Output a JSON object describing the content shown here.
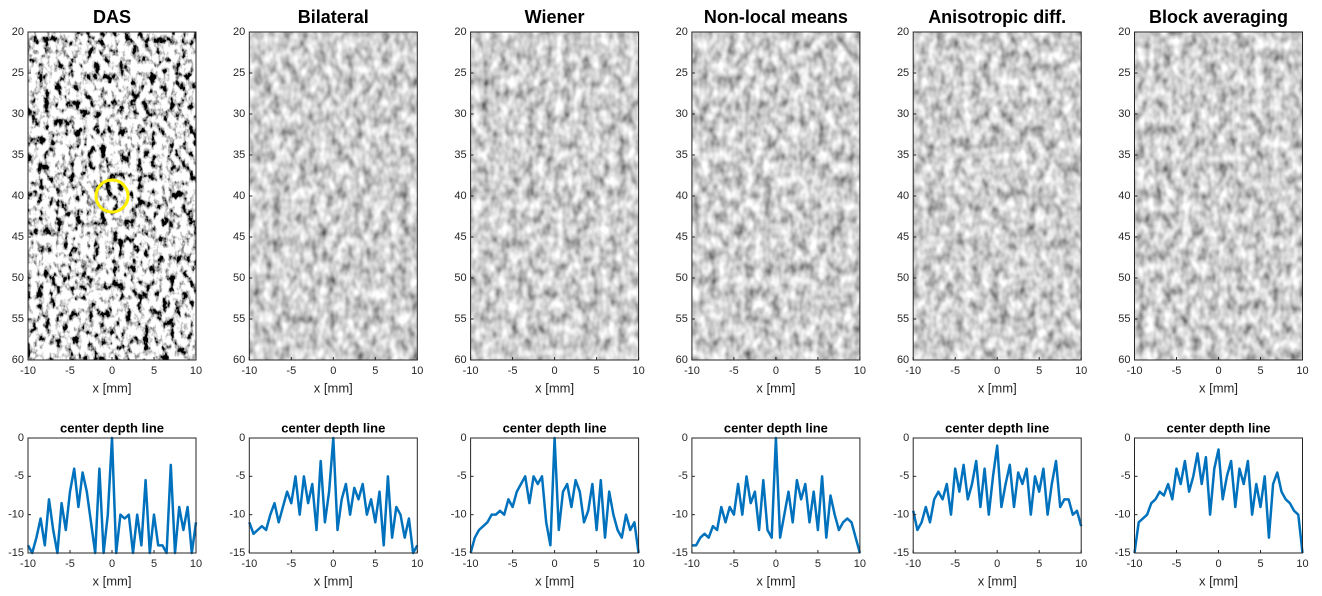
{
  "chart_data": [
    {
      "type": "image",
      "title": "DAS",
      "xlabel": "x [mm]",
      "xlim": [
        -10,
        10
      ],
      "xticks": [
        -10,
        -5,
        0,
        5,
        10
      ],
      "ylim": [
        20,
        60
      ],
      "yticks": [
        20,
        25,
        30,
        35,
        40,
        45,
        50,
        55,
        60
      ]
    },
    {
      "type": "image",
      "title": "Bilateral",
      "xlabel": "x [mm]",
      "xlim": [
        -10,
        10
      ],
      "xticks": [
        -10,
        -5,
        0,
        5,
        10
      ],
      "ylim": [
        20,
        60
      ],
      "yticks": [
        20,
        25,
        30,
        35,
        40,
        45,
        50,
        55,
        60
      ]
    },
    {
      "type": "image",
      "title": "Wiener",
      "xlabel": "x [mm]",
      "xlim": [
        -10,
        10
      ],
      "xticks": [
        -10,
        -5,
        0,
        5,
        10
      ],
      "ylim": [
        20,
        60
      ],
      "yticks": [
        20,
        25,
        30,
        35,
        40,
        45,
        50,
        55,
        60
      ]
    },
    {
      "type": "image",
      "title": "Non-local means",
      "xlabel": "x [mm]",
      "xlim": [
        -10,
        10
      ],
      "xticks": [
        -10,
        -5,
        0,
        5,
        10
      ],
      "ylim": [
        20,
        60
      ],
      "yticks": [
        20,
        25,
        30,
        35,
        40,
        45,
        50,
        55,
        60
      ]
    },
    {
      "type": "image",
      "title": "Anisotropic diff.",
      "xlabel": "x [mm]",
      "xlim": [
        -10,
        10
      ],
      "xticks": [
        -10,
        -5,
        0,
        5,
        10
      ],
      "ylim": [
        20,
        60
      ],
      "yticks": [
        20,
        25,
        30,
        35,
        40,
        45,
        50,
        55,
        60
      ]
    },
    {
      "type": "image",
      "title": "Block averaging",
      "xlabel": "x [mm]",
      "xlim": [
        -10,
        10
      ],
      "xticks": [
        -10,
        -5,
        0,
        5,
        10
      ],
      "ylim": [
        20,
        60
      ],
      "yticks": [
        20,
        25,
        30,
        35,
        40,
        45,
        50,
        55,
        60
      ]
    },
    {
      "type": "line",
      "title": "center depth line",
      "xlabel": "x [mm]",
      "xlim": [
        -10,
        10
      ],
      "xticks": [
        -10,
        -5,
        0,
        5,
        10
      ],
      "ylim": [
        -15,
        0
      ],
      "yticks": [
        -15,
        -10,
        -5,
        0
      ],
      "x": [
        -10,
        -9.5,
        -9,
        -8.5,
        -8,
        -7.5,
        -7,
        -6.5,
        -6,
        -5.5,
        -5,
        -4.5,
        -4,
        -3.5,
        -3,
        -2.5,
        -2,
        -1.5,
        -1,
        -0.5,
        0,
        0.5,
        1,
        1.5,
        2,
        2.5,
        3,
        3.5,
        4,
        4.5,
        5,
        5.5,
        6,
        6.5,
        7,
        7.5,
        8,
        8.5,
        9,
        9.5,
        10
      ],
      "series": [
        {
          "color": "#0072bd",
          "values": [
            -14,
            -15,
            -13,
            -10.5,
            -14,
            -8,
            -12,
            -15,
            -8.5,
            -12,
            -7,
            -4,
            -9,
            -4.5,
            -7,
            -11,
            -15,
            -4,
            -15,
            -10,
            0,
            -15,
            -10,
            -10.5,
            -10,
            -15,
            -10,
            -14,
            -5.5,
            -15,
            -10,
            -14,
            -14,
            -15,
            -3.5,
            -15,
            -9,
            -12,
            -9,
            -15,
            -11
          ]
        }
      ]
    },
    {
      "type": "line",
      "title": "center depth line",
      "xlabel": "x [mm]",
      "xlim": [
        -10,
        10
      ],
      "xticks": [
        -10,
        -5,
        0,
        5,
        10
      ],
      "ylim": [
        -15,
        0
      ],
      "yticks": [
        -15,
        -10,
        -5,
        0
      ],
      "x": [
        -10,
        -9.5,
        -9,
        -8.5,
        -8,
        -7.5,
        -7,
        -6.5,
        -6,
        -5.5,
        -5,
        -4.5,
        -4,
        -3.5,
        -3,
        -2.5,
        -2,
        -1.5,
        -1,
        -0.5,
        0,
        0.5,
        1,
        1.5,
        2,
        2.5,
        3,
        3.5,
        4,
        4.5,
        5,
        5.5,
        6,
        6.5,
        7,
        7.5,
        8,
        8.5,
        9,
        9.5,
        10
      ],
      "series": [
        {
          "color": "#0072bd",
          "values": [
            -11,
            -12.5,
            -12,
            -11.5,
            -12,
            -10,
            -8.5,
            -11,
            -9,
            -7,
            -8.5,
            -5,
            -10,
            -5,
            -8.5,
            -6,
            -12,
            -3,
            -11,
            -7,
            0,
            -12,
            -8,
            -6,
            -10,
            -6.5,
            -8,
            -6,
            -10,
            -8,
            -11,
            -7,
            -14,
            -5,
            -13,
            -9,
            -10,
            -13,
            -10.5,
            -15,
            -14
          ]
        }
      ]
    },
    {
      "type": "line",
      "title": "center depth line",
      "xlabel": "x [mm]",
      "xlim": [
        -10,
        10
      ],
      "xticks": [
        -10,
        -5,
        0,
        5,
        10
      ],
      "ylim": [
        -15,
        0
      ],
      "yticks": [
        -15,
        -10,
        -5,
        0
      ],
      "x": [
        -10,
        -9.5,
        -9,
        -8.5,
        -8,
        -7.5,
        -7,
        -6.5,
        -6,
        -5.5,
        -5,
        -4.5,
        -4,
        -3.5,
        -3,
        -2.5,
        -2,
        -1.5,
        -1,
        -0.5,
        0,
        0.5,
        1,
        1.5,
        2,
        2.5,
        3,
        3.5,
        4,
        4.5,
        5,
        5.5,
        6,
        6.5,
        7,
        7.5,
        8,
        8.5,
        9,
        9.5,
        10
      ],
      "series": [
        {
          "color": "#0072bd",
          "values": [
            -15,
            -13,
            -12,
            -11.5,
            -11,
            -10,
            -10,
            -9.5,
            -10,
            -8,
            -9,
            -7,
            -6,
            -5,
            -8.5,
            -5,
            -6,
            -5,
            -11,
            -14,
            0,
            -12,
            -7,
            -6,
            -9,
            -5.5,
            -7,
            -11,
            -9.5,
            -6,
            -12,
            -5.5,
            -13,
            -7,
            -10,
            -12,
            -13,
            -10,
            -12,
            -11,
            -15
          ]
        }
      ]
    },
    {
      "type": "line",
      "title": "center depth line",
      "xlabel": "x [mm]",
      "xlim": [
        -10,
        10
      ],
      "xticks": [
        -10,
        -5,
        0,
        5,
        10
      ],
      "ylim": [
        -15,
        0
      ],
      "yticks": [
        -15,
        -10,
        -5,
        0
      ],
      "x": [
        -10,
        -9.5,
        -9,
        -8.5,
        -8,
        -7.5,
        -7,
        -6.5,
        -6,
        -5.5,
        -5,
        -4.5,
        -4,
        -3.5,
        -3,
        -2.5,
        -2,
        -1.5,
        -1,
        -0.5,
        0,
        0.5,
        1,
        1.5,
        2,
        2.5,
        3,
        3.5,
        4,
        4.5,
        5,
        5.5,
        6,
        6.5,
        7,
        7.5,
        8,
        8.5,
        9,
        9.5,
        10
      ],
      "series": [
        {
          "color": "#0072bd",
          "values": [
            -14,
            -14,
            -13,
            -12.5,
            -13,
            -11.5,
            -12,
            -9,
            -11,
            -9,
            -10,
            -6,
            -10,
            -5,
            -8.5,
            -7,
            -12,
            -5.5,
            -12,
            -13,
            0,
            -13,
            -10,
            -7,
            -11,
            -5.5,
            -8,
            -6,
            -11,
            -7,
            -12,
            -5,
            -13,
            -7.5,
            -10,
            -12,
            -11,
            -10.5,
            -11,
            -13,
            -15
          ]
        }
      ]
    },
    {
      "type": "line",
      "title": "center depth line",
      "xlabel": "x [mm]",
      "xlim": [
        -10,
        10
      ],
      "xticks": [
        -10,
        -5,
        0,
        5,
        10
      ],
      "ylim": [
        -15,
        0
      ],
      "yticks": [
        -15,
        -10,
        -5,
        0
      ],
      "x": [
        -10,
        -9.5,
        -9,
        -8.5,
        -8,
        -7.5,
        -7,
        -6.5,
        -6,
        -5.5,
        -5,
        -4.5,
        -4,
        -3.5,
        -3,
        -2.5,
        -2,
        -1.5,
        -1,
        -0.5,
        0,
        0.5,
        1,
        1.5,
        2,
        2.5,
        3,
        3.5,
        4,
        4.5,
        5,
        5.5,
        6,
        6.5,
        7,
        7.5,
        8,
        8.5,
        9,
        9.5,
        10
      ],
      "series": [
        {
          "color": "#0072bd",
          "values": [
            -9.5,
            -12,
            -11,
            -9,
            -11,
            -8,
            -7,
            -8,
            -6,
            -10,
            -4,
            -7,
            -3.5,
            -8,
            -6,
            -3,
            -9,
            -4,
            -10,
            -5,
            -1,
            -9,
            -6,
            -3.5,
            -9,
            -4.5,
            -6,
            -4,
            -10,
            -5,
            -7,
            -4,
            -10,
            -6,
            -3,
            -9,
            -8,
            -8,
            -10,
            -9.5,
            -11.5
          ]
        }
      ]
    },
    {
      "type": "line",
      "title": "center depth line",
      "xlabel": "x [mm]",
      "xlim": [
        -10,
        10
      ],
      "xticks": [
        -10,
        -5,
        0,
        5,
        10
      ],
      "ylim": [
        -15,
        0
      ],
      "yticks": [
        -15,
        -10,
        -5,
        0
      ],
      "x": [
        -10,
        -9.5,
        -9,
        -8.5,
        -8,
        -7.5,
        -7,
        -6.5,
        -6,
        -5.5,
        -5,
        -4.5,
        -4,
        -3.5,
        -3,
        -2.5,
        -2,
        -1.5,
        -1,
        -0.5,
        0,
        0.5,
        1,
        1.5,
        2,
        2.5,
        3,
        3.5,
        4,
        4.5,
        5,
        5.5,
        6,
        6.5,
        7,
        7.5,
        8,
        8.5,
        9,
        9.5,
        10
      ],
      "series": [
        {
          "color": "#0072bd",
          "values": [
            -15,
            -11,
            -10.5,
            -10,
            -8.5,
            -8,
            -7,
            -7.5,
            -6,
            -8,
            -4,
            -6,
            -3,
            -7,
            -5,
            -2,
            -6,
            -2.5,
            -10,
            -4,
            -1.5,
            -8,
            -5,
            -3,
            -9,
            -4,
            -6,
            -3,
            -10,
            -6,
            -9,
            -5,
            -13,
            -6,
            -4.5,
            -7,
            -8,
            -8.5,
            -9.5,
            -10,
            -15
          ]
        }
      ]
    }
  ]
}
